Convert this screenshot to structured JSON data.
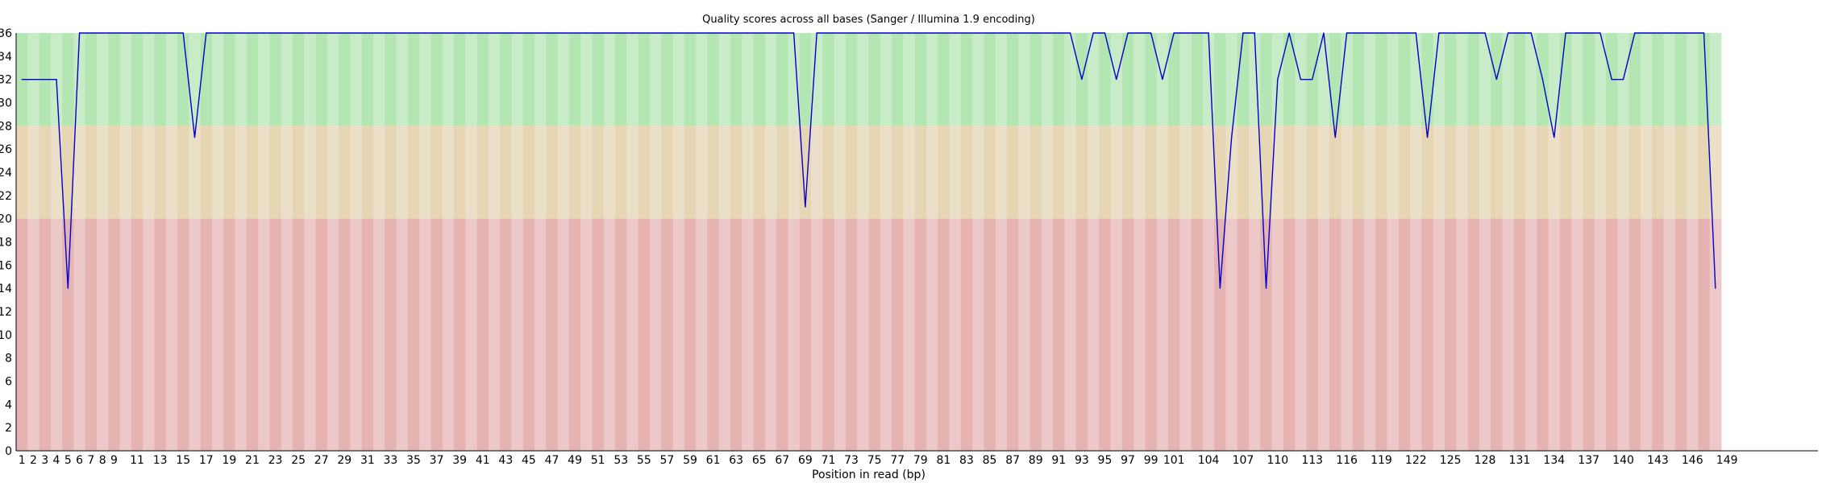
{
  "chart_data": {
    "type": "line",
    "title": "Quality scores across all bases (Sanger / Illumina 1.9 encoding)",
    "xlabel": "Position in read (bp)",
    "ylabel": "",
    "ylim": [
      0,
      36
    ],
    "yticks": [
      0,
      2,
      4,
      6,
      8,
      10,
      12,
      14,
      16,
      18,
      20,
      22,
      24,
      26,
      28,
      30,
      32,
      34,
      36
    ],
    "xtick_labels": [
      "1",
      "2",
      "3",
      "4",
      "5",
      "6",
      "7",
      "8",
      "9",
      "11",
      "13",
      "15",
      "17",
      "19",
      "21",
      "23",
      "25",
      "27",
      "29",
      "31",
      "33",
      "35",
      "37",
      "39",
      "41",
      "43",
      "45",
      "47",
      "49",
      "51",
      "53",
      "55",
      "57",
      "59",
      "61",
      "63",
      "65",
      "67",
      "69",
      "71",
      "73",
      "75",
      "77",
      "79",
      "81",
      "83",
      "85",
      "87",
      "89",
      "91",
      "93",
      "95",
      "97",
      "99",
      "101",
      "104",
      "107",
      "110",
      "113",
      "116",
      "119",
      "122",
      "125",
      "128",
      "131",
      "134",
      "137",
      "140",
      "143",
      "146",
      "149"
    ],
    "zones": [
      {
        "from": 28,
        "to": 36,
        "quality": "good",
        "colors": [
          "#b3e6b3",
          "#c8ecc8"
        ]
      },
      {
        "from": 20,
        "to": 28,
        "quality": "reasonable",
        "colors": [
          "#e6d6b3",
          "#ecdfc8"
        ]
      },
      {
        "from": 0,
        "to": 20,
        "quality": "poor",
        "colors": [
          "#e6b3b3",
          "#ecc8c8"
        ]
      }
    ],
    "line_color": "#0000cc",
    "grid": false,
    "series": [
      {
        "values": [
          32,
          32,
          32,
          32,
          14,
          36,
          36,
          36,
          36,
          36,
          36,
          36,
          36,
          36,
          36,
          27,
          36,
          36,
          36,
          36,
          36,
          36,
          36,
          36,
          36,
          36,
          36,
          36,
          36,
          36,
          36,
          36,
          36,
          36,
          36,
          36,
          36,
          36,
          36,
          36,
          36,
          36,
          36,
          36,
          36,
          36,
          36,
          36,
          36,
          36,
          36,
          36,
          36,
          36,
          36,
          36,
          36,
          36,
          36,
          36,
          36,
          36,
          36,
          36,
          36,
          36,
          36,
          36,
          21,
          36,
          36,
          36,
          36,
          36,
          36,
          36,
          36,
          36,
          36,
          36,
          36,
          36,
          36,
          36,
          36,
          36,
          36,
          36,
          36,
          36,
          36,
          36,
          32,
          36,
          36,
          32,
          36,
          36,
          36,
          32,
          36,
          36,
          36,
          36,
          14,
          27,
          36,
          36,
          14,
          32,
          36,
          32,
          32,
          36,
          27,
          36,
          36,
          36,
          36,
          36,
          36,
          36,
          27,
          36,
          36,
          36,
          36,
          36,
          32,
          36,
          36,
          36,
          32,
          27,
          36,
          36,
          36,
          36,
          32,
          32,
          36,
          36,
          36,
          36,
          36,
          36,
          36,
          14
        ]
      }
    ]
  }
}
